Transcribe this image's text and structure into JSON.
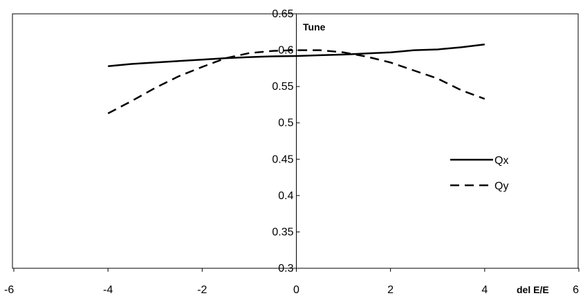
{
  "chart_data": {
    "type": "line",
    "ylabel": "Tune",
    "xlabel": "del E/E",
    "xlim": [
      -6,
      6
    ],
    "ylim": [
      0.3,
      0.65
    ],
    "x_ticks": [
      "-6",
      "-4",
      "-2",
      "0",
      "2",
      "4",
      "6"
    ],
    "y_ticks": [
      "0.3",
      "0.35",
      "0.4",
      "0.45",
      "0.5",
      "0.55",
      "0.6",
      "0.65"
    ],
    "grid": false,
    "legend_position": "right",
    "series": [
      {
        "name": "Qx",
        "style": "solid",
        "x": [
          -4,
          -3.5,
          -3,
          -2.5,
          -2,
          -1.5,
          -1,
          -0.5,
          0,
          0.5,
          1,
          1.5,
          2,
          2.5,
          3,
          3.5,
          4
        ],
        "y": [
          0.578,
          0.581,
          0.583,
          0.585,
          0.587,
          0.589,
          0.5905,
          0.5915,
          0.592,
          0.593,
          0.594,
          0.5955,
          0.597,
          0.6,
          0.601,
          0.604,
          0.608
        ]
      },
      {
        "name": "Qy",
        "style": "dashed",
        "x": [
          -4,
          -3.5,
          -3,
          -2.5,
          -2,
          -1.5,
          -1,
          -0.5,
          0,
          0.5,
          1,
          1.5,
          2,
          2.5,
          3,
          3.5,
          4
        ],
        "y": [
          0.513,
          0.53,
          0.548,
          0.564,
          0.577,
          0.589,
          0.596,
          0.599,
          0.6,
          0.6,
          0.597,
          0.591,
          0.583,
          0.572,
          0.561,
          0.545,
          0.533
        ]
      }
    ]
  },
  "colors": {
    "line": "#000000",
    "axis": "#000000",
    "background": "#ffffff"
  }
}
